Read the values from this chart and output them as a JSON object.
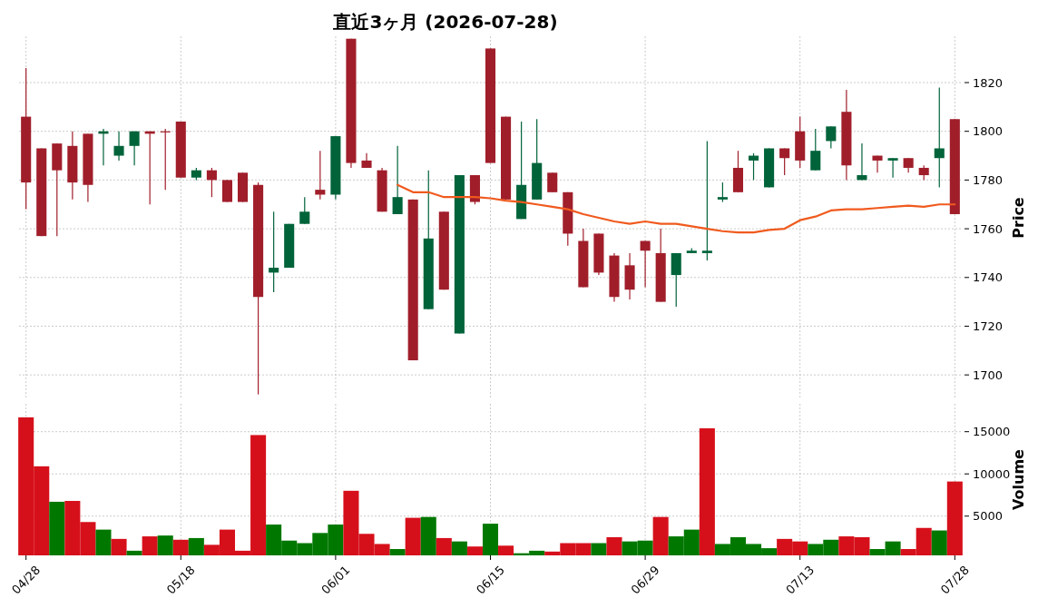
{
  "chart_data": [
    {
      "type": "candlestick",
      "title": "直近3ヶ月 (2026-07-28)",
      "ylabel": "Price",
      "tick_labels": "y",
      "grid": true,
      "categories": [
        null,
        null,
        null,
        null,
        null,
        null,
        null,
        null,
        null,
        null,
        null,
        null,
        null,
        null,
        null,
        null,
        null,
        null,
        null,
        null,
        null,
        null,
        null,
        null,
        null,
        null,
        null,
        null,
        null,
        null,
        null,
        null,
        null,
        null,
        null,
        null,
        null,
        null,
        null,
        null,
        null,
        null,
        null,
        null,
        null,
        null,
        null,
        null,
        null,
        null,
        null,
        null,
        null,
        null,
        null,
        null,
        null,
        null,
        null,
        null,
        null
      ],
      "ohlc": [
        [
          1806,
          1826,
          1768,
          1779
        ],
        [
          1793,
          1793,
          1757,
          1757
        ],
        [
          1795,
          1795,
          1757,
          1784
        ],
        [
          1794,
          1800,
          1772,
          1779
        ],
        [
          1799,
          1799,
          1771,
          1778
        ],
        [
          1799,
          1801,
          1786,
          1800
        ],
        [
          1790,
          1800,
          1788,
          1794
        ],
        [
          1794,
          1800,
          1786,
          1800
        ],
        [
          1800,
          1800,
          1770,
          1799
        ],
        [
          1800,
          1801,
          1776,
          1800
        ],
        [
          1804,
          1804,
          1781,
          1781
        ],
        [
          1781,
          1785,
          1780,
          1784
        ],
        [
          1784,
          1785,
          1773,
          1780
        ],
        [
          1780,
          1780,
          1771,
          1771
        ],
        [
          1783,
          1783,
          1771,
          1771
        ],
        [
          1778,
          1779,
          1692,
          1732
        ],
        [
          1742,
          1767,
          1734,
          1744
        ],
        [
          1744,
          1762,
          1744,
          1762
        ],
        [
          1762,
          1773,
          1762,
          1767
        ],
        [
          1776,
          1792,
          1772,
          1774
        ],
        [
          1774,
          1798,
          1772,
          1798
        ],
        [
          1838,
          1838,
          1785,
          1787
        ],
        [
          1788,
          1791,
          1785,
          1785
        ],
        [
          1784,
          1785,
          1767,
          1767
        ],
        [
          1766,
          1794,
          1766,
          1773
        ],
        [
          1772,
          1772,
          1706,
          1706
        ],
        [
          1727,
          1784,
          1727,
          1756
        ],
        [
          1767,
          1767,
          1735,
          1735
        ],
        [
          1717,
          1782,
          1717,
          1782
        ],
        [
          1782,
          1782,
          1770,
          1771
        ],
        [
          1834,
          1834,
          1787,
          1787
        ],
        [
          1806,
          1806,
          1772,
          1772
        ],
        [
          1764,
          1804,
          1764,
          1778
        ],
        [
          1772,
          1805,
          1772,
          1787
        ],
        [
          1783,
          1783,
          1775,
          1775
        ],
        [
          1775,
          1775,
          1753,
          1758
        ],
        [
          1755,
          1760,
          1736,
          1736
        ],
        [
          1758,
          1758,
          1741,
          1742
        ],
        [
          1749,
          1750,
          1730,
          1732
        ],
        [
          1745,
          1750,
          1731,
          1735
        ],
        [
          1755,
          1755,
          1736,
          1751
        ],
        [
          1750,
          1760,
          1730,
          1730
        ],
        [
          1741,
          1750,
          1728,
          1750
        ],
        [
          1750,
          1752,
          1750,
          1751
        ],
        [
          1750,
          1796,
          1747,
          1751
        ],
        [
          1772,
          1779,
          1771,
          1773
        ],
        [
          1785,
          1792,
          1775,
          1775
        ],
        [
          1788,
          1791,
          1780,
          1790
        ],
        [
          1777,
          1793,
          1777,
          1793
        ],
        [
          1793,
          1793,
          1782,
          1789
        ],
        [
          1800,
          1806,
          1785,
          1788
        ],
        [
          1784,
          1801,
          1784,
          1792
        ],
        [
          1796,
          1802,
          1793,
          1802
        ],
        [
          1808,
          1817,
          1780,
          1786
        ],
        [
          1780,
          1795,
          1780,
          1782
        ],
        [
          1790,
          1790,
          1783,
          1788
        ],
        [
          1788,
          1789,
          1781,
          1789
        ],
        [
          1789,
          1789,
          1783,
          1785
        ],
        [
          1785,
          1786,
          1780,
          1782
        ],
        [
          1789,
          1818,
          1777,
          1793
        ],
        [
          1805,
          1805,
          1766,
          1766
        ]
      ],
      "colors": [
        "#a01e2a",
        "#a01e2a",
        "#a01e2a",
        "#a01e2a",
        "#a01e2a",
        "#00633a",
        "#00633a",
        "#00633a",
        "#a01e2a",
        "#a01e2a",
        "#a01e2a",
        "#00633a",
        "#a01e2a",
        "#a01e2a",
        "#a01e2a",
        "#a01e2a",
        "#00633a",
        "#00633a",
        "#00633a",
        "#a01e2a",
        "#00633a",
        "#a01e2a",
        "#a01e2a",
        "#a01e2a",
        "#00633a",
        "#a01e2a",
        "#00633a",
        "#a01e2a",
        "#00633a",
        "#a01e2a",
        "#a01e2a",
        "#a01e2a",
        "#00633a",
        "#00633a",
        "#a01e2a",
        "#a01e2a",
        "#a01e2a",
        "#a01e2a",
        "#a01e2a",
        "#a01e2a",
        "#a01e2a",
        "#a01e2a",
        "#00633a",
        "#00633a",
        "#00633a",
        "#00633a",
        "#a01e2a",
        "#00633a",
        "#00633a",
        "#a01e2a",
        "#a01e2a",
        "#00633a",
        "#00633a",
        "#a01e2a",
        "#00633a",
        "#a01e2a",
        "#00633a",
        "#a01e2a",
        "#a01e2a",
        "#00633a",
        "#a01e2a"
      ],
      "series": [
        {
          "type": "line",
          "color": "#f05a1e",
          "values": [
            null,
            null,
            null,
            null,
            null,
            null,
            null,
            null,
            null,
            null,
            null,
            null,
            null,
            null,
            null,
            null,
            null,
            null,
            null,
            null,
            null,
            null,
            null,
            null,
            1778,
            1775,
            1775,
            1773,
            1773,
            1773,
            1772.5,
            1771.5,
            1771,
            1770,
            1769,
            1768,
            1766,
            1764.5,
            1763,
            1762,
            1763,
            1762,
            1762,
            1761,
            1760,
            1759,
            1758.5,
            1758.5,
            1759.5,
            1760,
            1763.5,
            1765,
            1767.5,
            1768,
            1768,
            1768.5,
            1769,
            1769.5,
            1769,
            1770,
            1770
          ]
        }
      ],
      "ylim": [
        1690,
        1839
      ],
      "yticks": [
        1700,
        1720,
        1740,
        1760,
        1780,
        1800,
        1820
      ]
    },
    {
      "type": "bar",
      "ylabel": "Volume",
      "grid": true,
      "categories": [
        "04/28",
        null,
        null,
        null,
        null,
        null,
        null,
        null,
        null,
        null,
        "05/18",
        null,
        null,
        null,
        null,
        null,
        null,
        null,
        null,
        null,
        "06/01",
        null,
        null,
        null,
        null,
        null,
        null,
        null,
        null,
        null,
        "06/15",
        null,
        null,
        null,
        null,
        null,
        null,
        null,
        null,
        null,
        "06/29",
        null,
        null,
        null,
        null,
        null,
        null,
        null,
        null,
        null,
        "07/13",
        null,
        null,
        null,
        null,
        null,
        null,
        null,
        null,
        null,
        "07/28"
      ],
      "values": [
        16700,
        10900,
        6700,
        6800,
        4300,
        3400,
        2300,
        900,
        2600,
        2700,
        2200,
        2400,
        1600,
        3400,
        900,
        14600,
        4000,
        2100,
        1800,
        3000,
        4000,
        8000,
        2900,
        1700,
        1100,
        4800,
        4900,
        2400,
        2000,
        1400,
        4100,
        1500,
        600,
        900,
        800,
        1800,
        1800,
        1800,
        2500,
        2000,
        2100,
        4900,
        2600,
        3400,
        15400,
        1700,
        2500,
        1700,
        1200,
        2300,
        2000,
        1700,
        2200,
        2600,
        2500,
        1100,
        2000,
        1100,
        3600,
        3300,
        9100
      ],
      "colors": [
        "#d6101b",
        "#d6101b",
        "#007800",
        "#d6101b",
        "#d6101b",
        "#007800",
        "#d6101b",
        "#007800",
        "#d6101b",
        "#007800",
        "#d6101b",
        "#007800",
        "#d6101b",
        "#d6101b",
        "#d6101b",
        "#d6101b",
        "#007800",
        "#007800",
        "#007800",
        "#007800",
        "#007800",
        "#d6101b",
        "#d6101b",
        "#d6101b",
        "#007800",
        "#d6101b",
        "#007800",
        "#d6101b",
        "#007800",
        "#d6101b",
        "#007800",
        "#d6101b",
        "#007800",
        "#007800",
        "#d6101b",
        "#d6101b",
        "#d6101b",
        "#007800",
        "#d6101b",
        "#007800",
        "#007800",
        "#d6101b",
        "#007800",
        "#007800",
        "#d6101b",
        "#007800",
        "#007800",
        "#007800",
        "#007800",
        "#d6101b",
        "#d6101b",
        "#007800",
        "#007800",
        "#d6101b",
        "#d6101b",
        "#007800",
        "#007800",
        "#d6101b",
        "#d6101b",
        "#007800",
        "#d6101b"
      ],
      "ylim": [
        350,
        18300
      ],
      "yticks": [
        5000,
        10000,
        15000
      ]
    }
  ]
}
